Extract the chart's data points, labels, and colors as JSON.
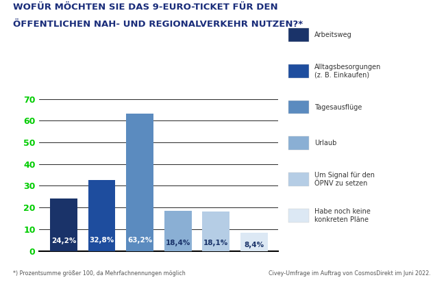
{
  "title_line1": "WOFÜR MÖCHTEN SIE DAS 9-EURO-TICKET FÜR DEN",
  "title_line2": "ÖFFENTLICHEN NAH- UND REGIONALVERKEHR NUTZEN?*",
  "values": [
    24.2,
    32.8,
    63.2,
    18.4,
    18.1,
    8.4
  ],
  "bar_colors": [
    "#1a3369",
    "#1e4d9e",
    "#5b8bbf",
    "#8aafd4",
    "#b5cde5",
    "#dce8f4"
  ],
  "value_labels": [
    "24,2%",
    "32,8%",
    "63,2%",
    "18,4%",
    "18,1%",
    "8,4%"
  ],
  "value_label_colors": [
    "#ffffff",
    "#ffffff",
    "#ffffff",
    "#1a3369",
    "#1a3369",
    "#1a3369"
  ],
  "yticks": [
    0,
    10,
    20,
    30,
    40,
    50,
    60,
    70
  ],
  "ylim": [
    0,
    74
  ],
  "ytick_color": "#00cc00",
  "title_color": "#1a2d7a",
  "footnote_left": "*) Prozentsumme größer 100, da Mehrfachnennungen möglich",
  "footnote_right": "Civey-Umfrage im Auftrag von CosmosDirekt im Juni 2022.",
  "background_color": "#ffffff",
  "legend_labels": [
    "Arbeitsweg",
    "Alltagsbesorgungen\n(z. B. Einkaufen)",
    "Tagesausflüge",
    "Urlaub",
    "Um Signal für den\nÖPNV zu setzen",
    "Habe noch keine\nkonkreten Pläne"
  ],
  "legend_colors": [
    "#1a3369",
    "#1e4d9e",
    "#5b8bbf",
    "#8aafd4",
    "#b5cde5",
    "#dce8f4"
  ],
  "grid_color": "#000000",
  "axis_line_color": "#000000"
}
